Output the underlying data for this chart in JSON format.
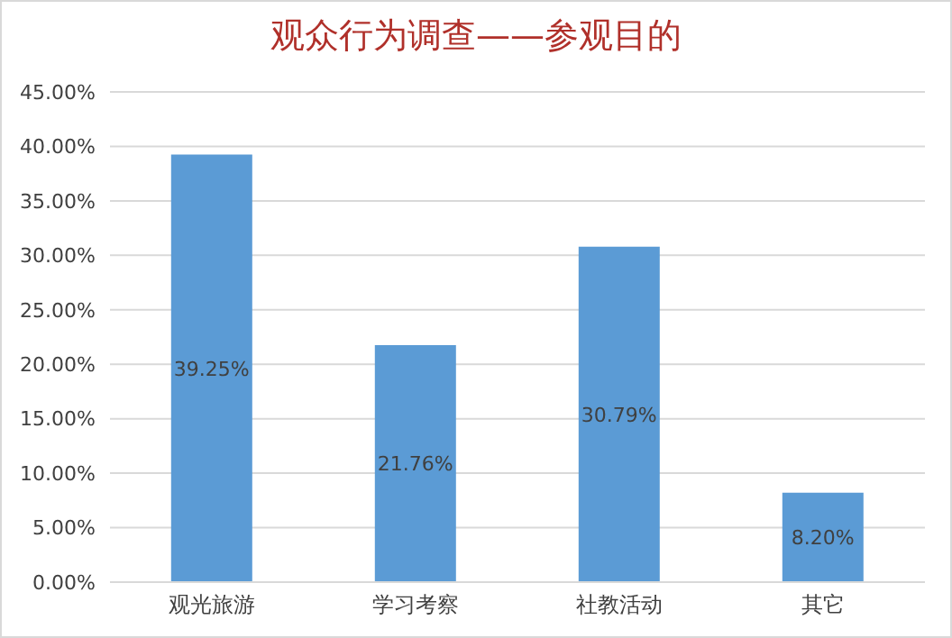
{
  "chart_data": {
    "type": "bar",
    "title": "观众行为调查——参观目的",
    "categories": [
      "观光旅游",
      "学习考察",
      "社教活动",
      "其它"
    ],
    "values": [
      39.25,
      21.76,
      30.79,
      8.2
    ],
    "color": "#5b9bd5",
    "value_labels": [
      "39.25%",
      "21.76%",
      "30.79%",
      "8.20%"
    ],
    "ylim": [
      0,
      45
    ],
    "yticks": [
      {
        "value": 0,
        "label": "0.00%"
      },
      {
        "value": 5,
        "label": "5.00%"
      },
      {
        "value": 10,
        "label": "10.00%"
      },
      {
        "value": 15,
        "label": "15.00%"
      },
      {
        "value": 20,
        "label": "20.00%"
      },
      {
        "value": 25,
        "label": "25.00%"
      },
      {
        "value": 30,
        "label": "30.00%"
      },
      {
        "value": 35,
        "label": "35.00%"
      },
      {
        "value": 40,
        "label": "40.00%"
      },
      {
        "value": 45,
        "label": "45.00%"
      }
    ],
    "grid": "y"
  }
}
